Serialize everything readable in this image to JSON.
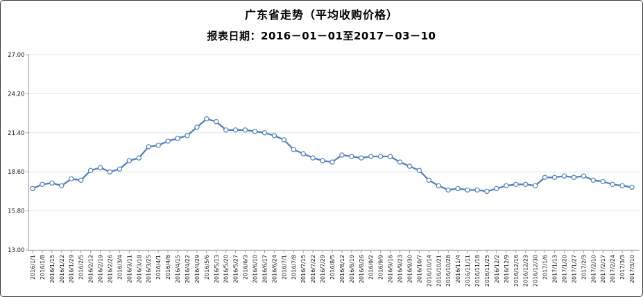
{
  "page": {
    "title": "广东省走势（平均收购价格）",
    "subtitle": "报表日期：2016－01－01至2017－03－10"
  },
  "chart_data": {
    "type": "line",
    "title": "广东省走势（平均收购价格）",
    "subtitle": "报表日期：2016－01－01至2017－03－10",
    "xlabel": "",
    "ylabel": "",
    "ylim": [
      13.0,
      27.0
    ],
    "ytick_labels": [
      "13.00",
      "15.80",
      "18.60",
      "21.40",
      "24.20",
      "27.00"
    ],
    "ytick_values": [
      13.0,
      15.8,
      18.6,
      21.4,
      24.2,
      27.0
    ],
    "grid": true,
    "legend": "none",
    "marker": "open-circle",
    "x": [
      "2016/1/1",
      "2016/1/8",
      "2016/1/15",
      "2016/1/22",
      "2016/1/29",
      "2016/2/5",
      "2016/2/12",
      "2016/2/19",
      "2016/2/26",
      "2016/3/4",
      "2016/3/11",
      "2016/3/18",
      "2016/3/25",
      "2016/4/1",
      "2016/4/8",
      "2016/4/15",
      "2016/4/22",
      "2016/4/29",
      "2016/5/6",
      "2016/5/13",
      "2016/5/20",
      "2016/5/27",
      "2016/6/3",
      "2016/6/10",
      "2016/6/17",
      "2016/6/24",
      "2016/7/1",
      "2016/7/8",
      "2016/7/15",
      "2016/7/22",
      "2016/7/29",
      "2016/8/5",
      "2016/8/12",
      "2016/8/19",
      "2016/8/26",
      "2016/9/2",
      "2016/9/9",
      "2016/9/16",
      "2016/9/23",
      "2016/9/30",
      "2016/10/7",
      "2016/10/14",
      "2016/10/21",
      "2016/10/28",
      "2016/11/4",
      "2016/11/11",
      "2016/11/18",
      "2016/11/25",
      "2016/12/2",
      "2016/12/9",
      "2016/12/16",
      "2016/12/23",
      "2016/12/30",
      "2017/1/6",
      "2017/1/13",
      "2017/1/20",
      "2017/1/27",
      "2017/2/3",
      "2017/2/10",
      "2017/2/17",
      "2017/2/24",
      "2017/3/3",
      "2017/3/10"
    ],
    "values": [
      17.4,
      17.7,
      17.8,
      17.6,
      18.1,
      18.0,
      18.7,
      18.9,
      18.6,
      18.8,
      19.4,
      19.6,
      20.4,
      20.5,
      20.8,
      21.0,
      21.2,
      21.8,
      22.4,
      22.2,
      21.6,
      21.6,
      21.6,
      21.5,
      21.4,
      21.2,
      20.9,
      20.2,
      19.9,
      19.6,
      19.4,
      19.3,
      19.8,
      19.7,
      19.6,
      19.7,
      19.7,
      19.7,
      19.3,
      19.0,
      18.7,
      18.0,
      17.6,
      17.3,
      17.4,
      17.3,
      17.3,
      17.2,
      17.4,
      17.6,
      17.7,
      17.7,
      17.6,
      18.2,
      18.2,
      18.3,
      18.2,
      18.3,
      18.0,
      17.9,
      17.7,
      17.6,
      17.5
    ]
  },
  "colors": {
    "line": "#4f81bd",
    "marker_fill": "#ffffff",
    "grid": "#dde5ee",
    "axis": "#9d9d9d",
    "tick_label": "#141414",
    "background": "#ffffff",
    "border": "#3b3b3b"
  }
}
